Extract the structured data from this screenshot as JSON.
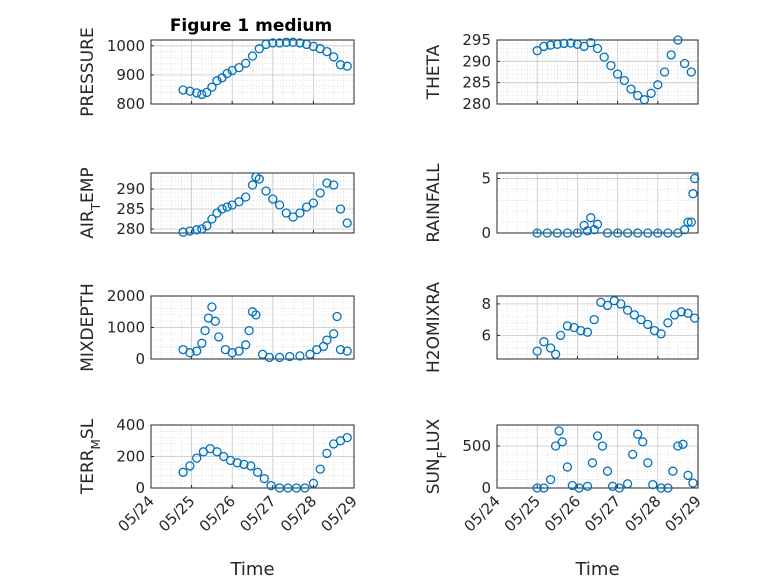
{
  "figure": {
    "title": "Figure 1 medium"
  },
  "chart_data": [
    {
      "type": "scatter",
      "ylabel": "PRESSURE",
      "ylabel_parts": [
        [
          "PRESSURE",
          ""
        ]
      ],
      "xlabel": "",
      "ylim": [
        800,
        1020
      ],
      "yticks": [
        800,
        900,
        1000
      ],
      "x": [
        "05/24 19:00",
        "05/24 23:00",
        "05/25 03:00",
        "05/25 06:00",
        "05/25 09:00",
        "05/25 12:00",
        "05/25 15:00",
        "05/25 18:00",
        "05/25 21:00",
        "05/26 00:00",
        "05/26 04:00",
        "05/26 08:00",
        "05/26 12:00",
        "05/26 16:00",
        "05/26 20:00",
        "05/27 00:00",
        "05/27 04:00",
        "05/27 08:00",
        "05/27 12:00",
        "05/27 16:00",
        "05/27 20:00",
        "05/28 00:00",
        "05/28 04:00",
        "05/28 08:00",
        "05/28 12:00",
        "05/28 16:00",
        "05/28 20:00"
      ],
      "y": [
        848,
        844,
        838,
        833,
        840,
        858,
        880,
        890,
        905,
        915,
        925,
        940,
        965,
        990,
        1005,
        1010,
        1010,
        1012,
        1012,
        1010,
        1005,
        998,
        990,
        980,
        962,
        935,
        930
      ],
      "color": "#0072bd"
    },
    {
      "type": "scatter",
      "ylabel": "THETA",
      "ylabel_parts": [
        [
          "THETA",
          ""
        ]
      ],
      "xlabel": "",
      "ylim": [
        280,
        295
      ],
      "yticks": [
        280,
        285,
        290,
        295
      ],
      "x": [
        "05/25 00:00",
        "05/25 04:00",
        "05/25 08:00",
        "05/25 12:00",
        "05/25 16:00",
        "05/25 20:00",
        "05/26 00:00",
        "05/26 04:00",
        "05/26 08:00",
        "05/26 12:00",
        "05/26 16:00",
        "05/26 20:00",
        "05/27 00:00",
        "05/27 04:00",
        "05/27 08:00",
        "05/27 12:00",
        "05/27 16:00",
        "05/27 20:00",
        "05/28 00:00",
        "05/28 04:00",
        "05/28 08:00",
        "05/28 12:00",
        "05/28 16:00",
        "05/28 20:00"
      ],
      "y": [
        292.5,
        293.5,
        293.8,
        294.0,
        294.2,
        294.3,
        294.0,
        293.5,
        294.4,
        293.0,
        291.0,
        289.0,
        287.0,
        285.5,
        283.5,
        282.0,
        281.0,
        282.5,
        284.5,
        287.5,
        291.5,
        295.0,
        289.5,
        287.5
      ],
      "color": "#0072bd"
    },
    {
      "type": "scatter",
      "ylabel": "AIR_TEMP",
      "ylabel_parts": [
        [
          "AIR",
          ""
        ],
        [
          "T",
          "sub"
        ],
        [
          "EMP",
          ""
        ]
      ],
      "xlabel": "",
      "ylim": [
        279,
        294
      ],
      "yticks": [
        280,
        285,
        290
      ],
      "x": [
        "05/24 19:00",
        "05/24 23:00",
        "05/25 03:00",
        "05/25 06:00",
        "05/25 09:00",
        "05/25 12:00",
        "05/25 15:00",
        "05/25 18:00",
        "05/25 21:00",
        "05/26 00:00",
        "05/26 04:00",
        "05/26 08:00",
        "05/26 12:00",
        "05/26 14:00",
        "05/26 16:00",
        "05/26 20:00",
        "05/27 00:00",
        "05/27 04:00",
        "05/27 08:00",
        "05/27 12:00",
        "05/27 16:00",
        "05/27 20:00",
        "05/28 00:00",
        "05/28 04:00",
        "05/28 08:00",
        "05/28 12:00",
        "05/28 16:00",
        "05/28 20:00"
      ],
      "y": [
        279.2,
        279.5,
        279.8,
        280.0,
        280.8,
        282.5,
        284.0,
        285.0,
        285.5,
        286.0,
        286.8,
        288.0,
        291.0,
        293.0,
        292.5,
        289.5,
        287.5,
        286.0,
        284.0,
        283.0,
        284.0,
        285.5,
        286.5,
        289.0,
        291.5,
        291.0,
        285.0,
        281.5
      ],
      "color": "#0072bd"
    },
    {
      "type": "scatter",
      "ylabel": "RAINFALL",
      "ylabel_parts": [
        [
          "RAINFALL",
          ""
        ]
      ],
      "xlabel": "",
      "ylim": [
        0,
        5.5
      ],
      "yticks": [
        0,
        5
      ],
      "x": [
        "05/25 00:00",
        "05/25 06:00",
        "05/25 12:00",
        "05/25 18:00",
        "05/26 00:00",
        "05/26 04:00",
        "05/26 06:00",
        "05/26 08:00",
        "05/26 10:00",
        "05/26 12:00",
        "05/26 18:00",
        "05/27 00:00",
        "05/27 06:00",
        "05/27 12:00",
        "05/27 18:00",
        "05/28 00:00",
        "05/28 06:00",
        "05/28 12:00",
        "05/28 16:00",
        "05/28 18:00",
        "05/28 20:00",
        "05/28 21:00",
        "05/28 22:00"
      ],
      "y": [
        0,
        0,
        0,
        0,
        0,
        0.7,
        0.2,
        1.4,
        0.3,
        0.8,
        0,
        0,
        0,
        0,
        0,
        0,
        0,
        0,
        0.3,
        1.0,
        1.0,
        3.6,
        5.0
      ],
      "color": "#0072bd"
    },
    {
      "type": "scatter",
      "ylabel": "MIXDEPTH",
      "ylabel_parts": [
        [
          "MIXDEPTH",
          ""
        ]
      ],
      "xlabel": "",
      "ylim": [
        0,
        2000
      ],
      "yticks": [
        0,
        1000,
        2000
      ],
      "x": [
        "05/24 19:00",
        "05/24 23:00",
        "05/25 03:00",
        "05/25 06:00",
        "05/25 08:00",
        "05/25 10:00",
        "05/25 12:00",
        "05/25 14:00",
        "05/25 16:00",
        "05/25 20:00",
        "05/26 00:00",
        "05/26 04:00",
        "05/26 08:00",
        "05/26 10:00",
        "05/26 12:00",
        "05/26 14:00",
        "05/26 18:00",
        "05/26 22:00",
        "05/27 04:00",
        "05/27 10:00",
        "05/27 16:00",
        "05/27 22:00",
        "05/28 02:00",
        "05/28 06:00",
        "05/28 08:00",
        "05/28 12:00",
        "05/28 14:00",
        "05/28 16:00",
        "05/28 20:00"
      ],
      "y": [
        300,
        200,
        250,
        500,
        900,
        1300,
        1650,
        1200,
        700,
        300,
        200,
        250,
        450,
        900,
        1500,
        1400,
        150,
        50,
        50,
        80,
        100,
        150,
        300,
        400,
        600,
        800,
        1350,
        300,
        250
      ],
      "color": "#0072bd"
    },
    {
      "type": "scatter",
      "ylabel": "H2OMIXRA",
      "ylabel_parts": [
        [
          "H2OMIXRA",
          ""
        ]
      ],
      "xlabel": "",
      "ylim": [
        4.5,
        8.5
      ],
      "yticks": [
        6,
        8
      ],
      "x": [
        "05/25 00:00",
        "05/25 04:00",
        "05/25 08:00",
        "05/25 11:00",
        "05/25 14:00",
        "05/25 18:00",
        "05/25 22:00",
        "05/26 02:00",
        "05/26 06:00",
        "05/26 10:00",
        "05/26 14:00",
        "05/26 18:00",
        "05/26 22:00",
        "05/27 02:00",
        "05/27 06:00",
        "05/27 10:00",
        "05/27 14:00",
        "05/27 18:00",
        "05/27 22:00",
        "05/28 02:00",
        "05/28 06:00",
        "05/28 10:00",
        "05/28 14:00",
        "05/28 18:00",
        "05/28 22:00"
      ],
      "y": [
        5.0,
        5.6,
        5.2,
        4.8,
        6.0,
        6.6,
        6.5,
        6.3,
        6.2,
        7.0,
        8.1,
        7.9,
        8.2,
        8.0,
        7.6,
        7.3,
        7.0,
        6.7,
        6.3,
        6.1,
        6.8,
        7.3,
        7.5,
        7.4,
        7.1
      ],
      "color": "#0072bd"
    },
    {
      "type": "scatter",
      "ylabel": "TERR_MSL",
      "ylabel_parts": [
        [
          "TERR",
          ""
        ],
        [
          "M",
          "sub"
        ],
        [
          "SL",
          ""
        ]
      ],
      "xlabel": "Time",
      "ylim": [
        0,
        400
      ],
      "yticks": [
        0,
        200,
        400
      ],
      "xticklabels": [
        "05/24",
        "05/25",
        "05/26",
        "05/27",
        "05/28",
        "05/29"
      ],
      "x": [
        "05/24 19:00",
        "05/24 23:00",
        "05/25 03:00",
        "05/25 07:00",
        "05/25 11:00",
        "05/25 15:00",
        "05/25 19:00",
        "05/25 23:00",
        "05/26 03:00",
        "05/26 07:00",
        "05/26 11:00",
        "05/26 15:00",
        "05/26 19:00",
        "05/26 23:00",
        "05/27 04:00",
        "05/27 09:00",
        "05/27 14:00",
        "05/27 19:00",
        "05/28 00:00",
        "05/28 04:00",
        "05/28 08:00",
        "05/28 12:00",
        "05/28 16:00",
        "05/28 20:00"
      ],
      "y": [
        100,
        140,
        190,
        230,
        250,
        230,
        200,
        175,
        160,
        150,
        140,
        100,
        60,
        15,
        0,
        0,
        0,
        0,
        30,
        120,
        220,
        280,
        300,
        320
      ],
      "color": "#0072bd"
    },
    {
      "type": "scatter",
      "ylabel": "SUN_FLUX",
      "ylabel_parts": [
        [
          "SUN",
          ""
        ],
        [
          "F",
          "sub"
        ],
        [
          "LUX",
          ""
        ]
      ],
      "xlabel": "Time",
      "ylim": [
        0,
        750
      ],
      "yticks": [
        0,
        500
      ],
      "xticklabels": [
        "05/24",
        "05/25",
        "05/26",
        "05/27",
        "05/28",
        "05/29"
      ],
      "x": [
        "05/25 00:00",
        "05/25 04:00",
        "05/25 08:00",
        "05/25 11:00",
        "05/25 13:00",
        "05/25 15:00",
        "05/25 18:00",
        "05/25 21:00",
        "05/26 01:00",
        "05/26 06:00",
        "05/26 09:00",
        "05/26 12:00",
        "05/26 15:00",
        "05/26 18:00",
        "05/26 21:00",
        "05/27 01:00",
        "05/27 06:00",
        "05/27 09:00",
        "05/27 12:00",
        "05/27 15:00",
        "05/27 18:00",
        "05/27 21:00",
        "05/28 02:00",
        "05/28 06:00",
        "05/28 09:00",
        "05/28 12:00",
        "05/28 15:00",
        "05/28 18:00",
        "05/28 21:00"
      ],
      "y": [
        0,
        0,
        100,
        500,
        680,
        550,
        250,
        30,
        0,
        20,
        300,
        620,
        500,
        200,
        20,
        0,
        50,
        400,
        640,
        550,
        300,
        40,
        0,
        0,
        200,
        500,
        520,
        150,
        60
      ],
      "color": "#0072bd"
    }
  ]
}
